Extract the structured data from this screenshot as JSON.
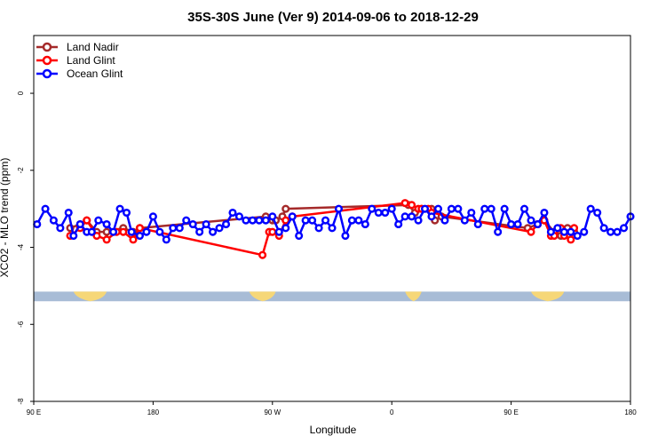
{
  "chart_data": {
    "type": "line",
    "title": "35S-30S June (Ver 9)   2014-09-06 to 2018-12-29",
    "xlabel": "Longitude",
    "ylabel": "XCO2 - MLO trend (ppm)",
    "xlim": [
      -270,
      -90
    ],
    "ylim": [
      -8.0,
      1.5
    ],
    "yticks": [
      0,
      -2,
      -4,
      -6,
      -8
    ],
    "xticks": [
      {
        "value": -270,
        "label": "90 E"
      },
      {
        "value": -234,
        "label": "180"
      },
      {
        "value": -198,
        "label": "90 W"
      },
      {
        "value": -162,
        "label": "0"
      },
      {
        "value": -126,
        "label": "90 E"
      },
      {
        "value": -90,
        "label": "180"
      }
    ],
    "landmask_band": {
      "y_range": [
        -5.15,
        -5.4
      ],
      "ocean_color": "#a8bcd6",
      "land_color": "#f6d778"
    },
    "legend": {
      "position": "top-left"
    },
    "series": [
      {
        "name": "Land Nadir",
        "color": "#a52a2a",
        "x": [
          -259,
          -256,
          -254,
          -251,
          -248,
          -243,
          -240,
          -238,
          -200,
          -198,
          -197,
          -195,
          -194,
          -157,
          -155,
          -153,
          -150,
          -149,
          -147,
          -121,
          -118,
          -116,
          -113,
          -111,
          -109,
          -107
        ],
        "y": [
          -3.5,
          -3.4,
          -3.3,
          -3.6,
          -3.6,
          -3.5,
          -3.6,
          -3.5,
          -3.2,
          -3.3,
          -3.3,
          -3.2,
          -3.0,
          -2.9,
          -3.1,
          -3.0,
          -3.0,
          -3.3,
          -3.2,
          -3.5,
          -3.4,
          -3.3,
          -3.6,
          -3.7,
          -3.5,
          -3.6
        ]
      },
      {
        "name": "Land Glint",
        "color": "#ff0000",
        "x": [
          -259,
          -256,
          -254,
          -251,
          -248,
          -245,
          -243,
          -240,
          -238,
          -201,
          -199,
          -198,
          -196,
          -194,
          -192,
          -158,
          -156,
          -154,
          -153,
          -151,
          -150,
          -120,
          -118,
          -116,
          -114,
          -113,
          -111,
          -110,
          -108,
          -107
        ],
        "y": [
          -3.7,
          -3.5,
          -3.3,
          -3.7,
          -3.8,
          -3.6,
          -3.6,
          -3.8,
          -3.5,
          -4.2,
          -3.6,
          -3.6,
          -3.7,
          -3.3,
          -3.2,
          -2.85,
          -2.9,
          -3.0,
          -3.0,
          -3.0,
          -3.1,
          -3.6,
          -3.4,
          -3.3,
          -3.7,
          -3.7,
          -3.5,
          -3.7,
          -3.8,
          -3.5
        ]
      },
      {
        "name": "Ocean Glint",
        "color": "#0000ff",
        "x": [
          -269,
          -266.5,
          -264,
          -262,
          -259.5,
          -258,
          -256,
          -254,
          -252.5,
          -250.5,
          -248,
          -246,
          -244,
          -242,
          -240.5,
          -238,
          -236,
          -234,
          -232,
          -230,
          -228,
          -226,
          -224,
          -222,
          -220,
          -218,
          -216,
          -214,
          -212,
          -210,
          -208,
          -206,
          -204,
          -202,
          -200,
          -198,
          -196,
          -194,
          -192,
          -190,
          -188,
          -186,
          -184,
          -182,
          -180,
          -178,
          -176,
          -174,
          -172,
          -170,
          -168,
          -166,
          -164,
          -162,
          -160,
          -158,
          -156,
          -154,
          -152,
          -150,
          -148,
          -146,
          -144,
          -142,
          -140,
          -138,
          -136,
          -134,
          -132,
          -130,
          -128,
          -126,
          -124,
          -122,
          -120,
          -118,
          -116,
          -114,
          -112,
          -110,
          -108,
          -106,
          -104,
          -102,
          -100,
          -98,
          -96,
          -94,
          -92,
          -90
        ],
        "y": [
          -3.4,
          -3.0,
          -3.3,
          -3.5,
          -3.1,
          -3.7,
          -3.4,
          -3.6,
          -3.6,
          -3.3,
          -3.4,
          -3.6,
          -3.0,
          -3.1,
          -3.6,
          -3.7,
          -3.6,
          -3.2,
          -3.6,
          -3.8,
          -3.5,
          -3.5,
          -3.3,
          -3.4,
          -3.6,
          -3.4,
          -3.6,
          -3.5,
          -3.4,
          -3.1,
          -3.2,
          -3.3,
          -3.3,
          -3.3,
          -3.3,
          -3.2,
          -3.6,
          -3.5,
          -3.2,
          -3.7,
          -3.3,
          -3.3,
          -3.5,
          -3.3,
          -3.5,
          -3.0,
          -3.7,
          -3.3,
          -3.3,
          -3.4,
          -3.0,
          -3.1,
          -3.1,
          -3.0,
          -3.4,
          -3.2,
          -3.2,
          -3.3,
          -3.0,
          -3.2,
          -3.0,
          -3.3,
          -3.0,
          -3.0,
          -3.3,
          -3.1,
          -3.4,
          -3.0,
          -3.0,
          -3.6,
          -3.0,
          -3.4,
          -3.4,
          -3.0,
          -3.3,
          -3.4,
          -3.1,
          -3.6,
          -3.5,
          -3.6,
          -3.6,
          -3.7,
          -3.6,
          -3.0,
          -3.1,
          -3.5,
          -3.6,
          -3.6,
          -3.5,
          -3.2
        ]
      }
    ]
  }
}
